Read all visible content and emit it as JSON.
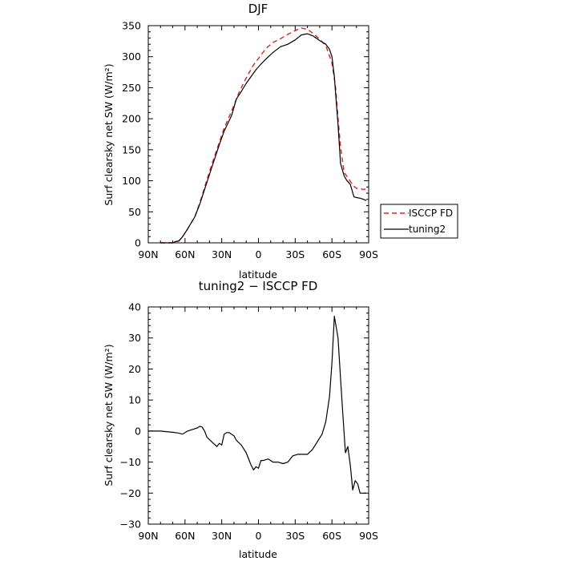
{
  "chart_data": [
    {
      "type": "line",
      "title": "DJF",
      "xlabel": "latitude",
      "ylabel": "Surf clearsky net SW (W/m²)",
      "xlim": [
        -90,
        90
      ],
      "ylim": [
        0,
        350
      ],
      "x_ticks": [
        -90,
        -60,
        -30,
        0,
        30,
        60,
        90
      ],
      "x_tick_labels": [
        "90N",
        "60N",
        "30N",
        "0",
        "30S",
        "60S",
        "90S"
      ],
      "y_ticks": [
        0,
        50,
        100,
        150,
        200,
        250,
        300,
        350
      ],
      "y_tick_labels": [
        "0",
        "50",
        "100",
        "150",
        "200",
        "250",
        "300",
        "350"
      ],
      "legend_position": "right",
      "series": [
        {
          "name": "ISCCP FD",
          "color": "#e02020",
          "style": "dashed",
          "x": [
            -80,
            -75,
            -70,
            -68,
            -65,
            -62,
            -58,
            -52,
            -48,
            -42,
            -38,
            -32,
            -28,
            -22,
            -16,
            -12,
            -8,
            -4,
            0,
            6,
            12,
            18,
            24,
            30,
            35,
            40,
            45,
            50,
            55,
            60,
            63,
            65,
            67,
            70,
            72,
            75,
            78,
            80,
            83,
            86,
            88
          ],
          "y": [
            0,
            0,
            0,
            2,
            3,
            10,
            22,
            42,
            64,
            102,
            127,
            162,
            185,
            212,
            242,
            258,
            273,
            287,
            297,
            313,
            323,
            329,
            336,
            342,
            346,
            344,
            337,
            328,
            318,
            290,
            250,
            200,
            155,
            113,
            108,
            99,
            91,
            88,
            87,
            86,
            87
          ]
        },
        {
          "name": "tuning2",
          "color": "#000000",
          "style": "solid",
          "x": [
            -80,
            -75,
            -70,
            -68,
            -65,
            -62,
            -58,
            -52,
            -48,
            -42,
            -38,
            -32,
            -28,
            -22,
            -18,
            -14,
            -10,
            -6,
            -2,
            2,
            6,
            12,
            18,
            24,
            30,
            35,
            40,
            45,
            50,
            55,
            58,
            60,
            62,
            63,
            65,
            67,
            70,
            72,
            75,
            78,
            80,
            83,
            86,
            88
          ],
          "y": [
            0,
            0,
            0,
            2,
            3,
            10,
            22,
            42,
            62,
            98,
            122,
            158,
            180,
            205,
            232,
            244,
            257,
            268,
            279,
            288,
            296,
            307,
            316,
            320,
            327,
            335,
            337,
            333,
            326,
            320,
            312,
            300,
            268,
            240,
            190,
            128,
            108,
            101,
            94,
            74,
            73,
            72,
            70,
            68
          ]
        }
      ]
    },
    {
      "type": "line",
      "title": "tuning2 − ISCCP FD",
      "xlabel": "latitude",
      "ylabel": "Surf clearsky net SW (W/m²)",
      "xlim": [
        -90,
        90
      ],
      "ylim": [
        -30,
        40
      ],
      "x_ticks": [
        -90,
        -60,
        -30,
        0,
        30,
        60,
        90
      ],
      "x_tick_labels": [
        "90N",
        "60N",
        "30N",
        "0",
        "30S",
        "60S",
        "90S"
      ],
      "y_ticks": [
        -30,
        -20,
        -10,
        0,
        10,
        20,
        30,
        40
      ],
      "y_tick_labels": [
        "−30",
        "−20",
        "−10",
        "0",
        "10",
        "20",
        "30",
        "40"
      ],
      "series": [
        {
          "color": "#000000",
          "style": "solid",
          "x": [
            -90,
            -85,
            -80,
            -75,
            -70,
            -66,
            -62,
            -58,
            -54,
            -50,
            -48,
            -46,
            -44,
            -42,
            -38,
            -34,
            -32,
            -30,
            -28,
            -26,
            -24,
            -20,
            -18,
            -14,
            -10,
            -6,
            -4,
            -2,
            0,
            2,
            4,
            8,
            12,
            16,
            20,
            24,
            28,
            32,
            36,
            40,
            44,
            48,
            52,
            55,
            58,
            60,
            62,
            65,
            67,
            69,
            71,
            73,
            75,
            77,
            79,
            81,
            83,
            85,
            87,
            88
          ],
          "y": [
            0,
            0,
            0,
            -0.2,
            -0.4,
            -0.6,
            -1,
            0,
            0.5,
            1,
            1.5,
            1.3,
            0,
            -2,
            -3.5,
            -5,
            -4,
            -4.5,
            -1,
            -0.5,
            -0.5,
            -1.5,
            -3,
            -4.5,
            -7,
            -11,
            -12.5,
            -11.5,
            -12,
            -9.5,
            -9.5,
            -9,
            -10,
            -10,
            -10.5,
            -10,
            -8,
            -7.5,
            -7.5,
            -7.5,
            -6,
            -3.5,
            -1,
            3,
            11,
            22,
            37,
            30,
            17,
            5,
            -7,
            -5,
            -11,
            -19,
            -16,
            -17,
            -20,
            -20,
            -20,
            -20
          ]
        }
      ]
    }
  ]
}
